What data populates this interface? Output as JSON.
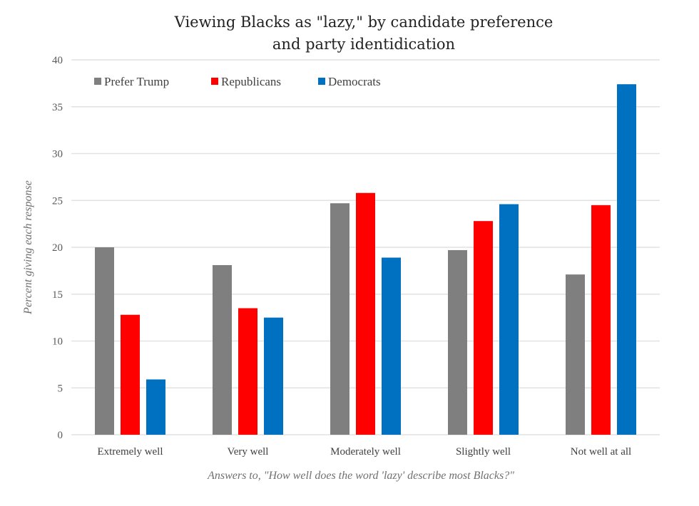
{
  "chart_data": {
    "type": "bar",
    "title": "Viewing Blacks as \"lazy,\" by candidate preference",
    "title_line2": "and party identidication",
    "xlabel": "Answers to, \"How well does the word 'lazy' describe most Blacks?\"",
    "ylabel": "Percent giving each response",
    "ylim": [
      0,
      40
    ],
    "yticks": [
      0,
      5,
      10,
      15,
      20,
      25,
      30,
      35,
      40
    ],
    "grid": true,
    "legend_position": "top-left",
    "categories": [
      "Extremely well",
      "Very well",
      "Moderately well",
      "Slightly well",
      "Not well at all"
    ],
    "series": [
      {
        "name": "Prefer Trump",
        "color": "#7f7f7f",
        "values": [
          20.0,
          18.1,
          24.7,
          19.7,
          17.1
        ]
      },
      {
        "name": "Republicans",
        "color": "#ff0000",
        "values": [
          12.8,
          13.5,
          25.8,
          22.8,
          24.5
        ]
      },
      {
        "name": "Democrats",
        "color": "#0070c0",
        "values": [
          5.9,
          12.5,
          18.9,
          24.6,
          37.4
        ]
      }
    ]
  }
}
